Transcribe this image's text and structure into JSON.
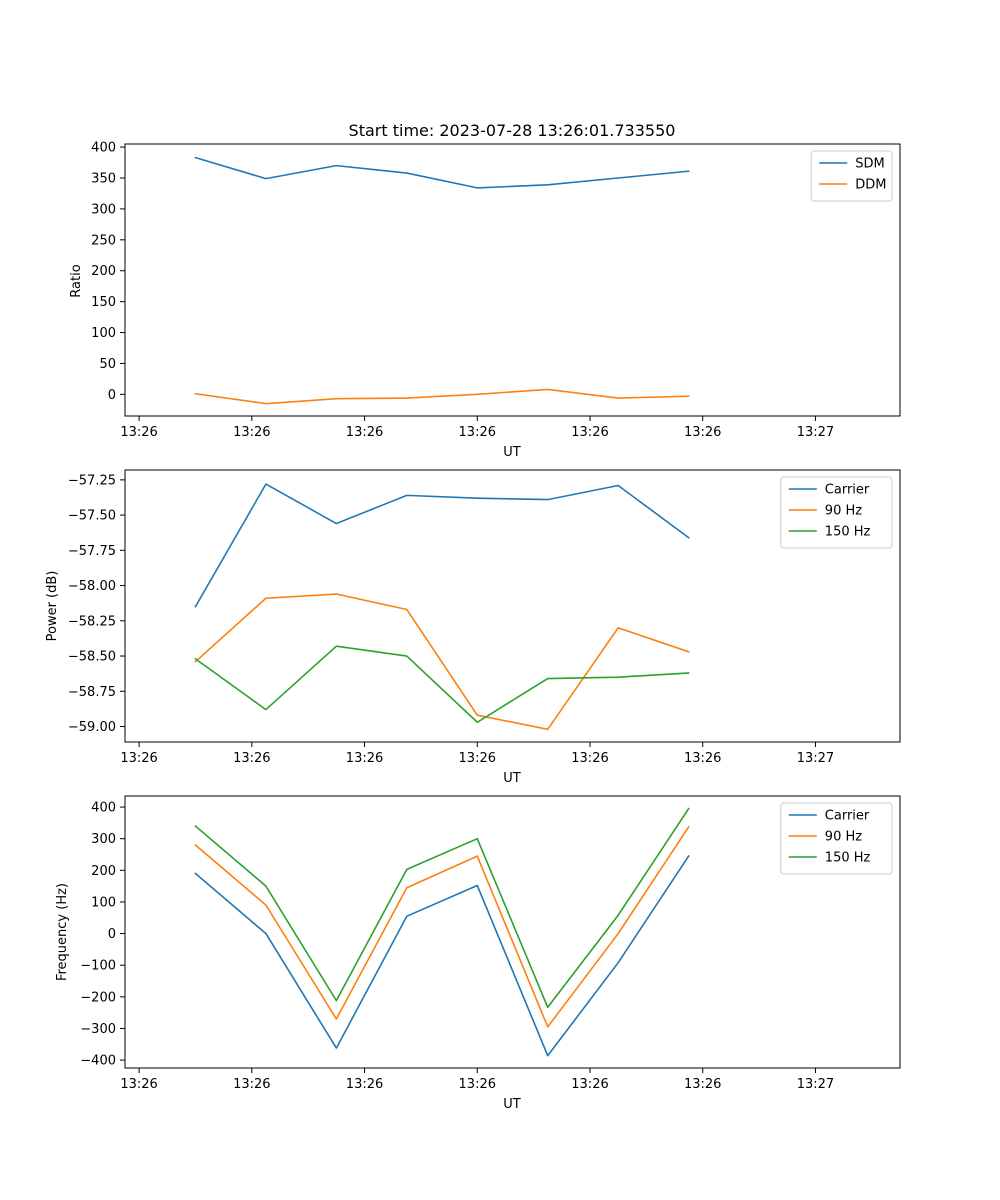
{
  "chart_data": [
    {
      "type": "line",
      "title": "Start time: 2023-07-28 13:26:01.733550",
      "xlabel": "UT",
      "ylabel": "Ratio",
      "xlim": [
        0,
        11
      ],
      "ylim": [
        -35,
        405
      ],
      "x": [
        1,
        2,
        3,
        4,
        5,
        6,
        7,
        8
      ],
      "xticks": [
        0.2,
        1.8,
        3.4,
        5.0,
        6.6,
        8.2,
        9.8
      ],
      "xtick_labels": [
        "13:26",
        "13:26",
        "13:26",
        "13:26",
        "13:26",
        "13:26",
        "13:27"
      ],
      "yticks": [
        0,
        50,
        100,
        150,
        200,
        250,
        300,
        350,
        400
      ],
      "legend_position": "upper-right",
      "series": [
        {
          "name": "SDM",
          "color": "#1f77b4",
          "values": [
            383,
            349,
            370,
            358,
            334,
            339,
            350,
            361
          ]
        },
        {
          "name": "DDM",
          "color": "#ff7f0e",
          "values": [
            1,
            -15,
            -7,
            -6,
            0,
            8,
            -6,
            -3
          ]
        }
      ]
    },
    {
      "type": "line",
      "title": "",
      "xlabel": "UT",
      "ylabel": "Power (dB)",
      "xlim": [
        0,
        11
      ],
      "ylim": [
        -59.11,
        -57.18
      ],
      "x": [
        1,
        2,
        3,
        4,
        5,
        6,
        7,
        8
      ],
      "xticks": [
        0.2,
        1.8,
        3.4,
        5.0,
        6.6,
        8.2,
        9.8
      ],
      "xtick_labels": [
        "13:26",
        "13:26",
        "13:26",
        "13:26",
        "13:26",
        "13:26",
        "13:27"
      ],
      "yticks": [
        -59.0,
        -58.75,
        -58.5,
        -58.25,
        -58.0,
        -57.75,
        -57.5,
        -57.25
      ],
      "ytick_labels": [
        "−59.00",
        "−58.75",
        "−58.50",
        "−58.25",
        "−58.00",
        "−57.75",
        "−57.50",
        "−57.25"
      ],
      "legend_position": "upper-right",
      "series": [
        {
          "name": "Carrier",
          "color": "#1f77b4",
          "values": [
            -58.15,
            -57.28,
            -57.56,
            -57.36,
            -57.38,
            -57.39,
            -57.29,
            -57.66
          ]
        },
        {
          "name": "90 Hz",
          "color": "#ff7f0e",
          "values": [
            -58.54,
            -58.09,
            -58.06,
            -58.17,
            -58.92,
            -59.02,
            -58.3,
            -58.47
          ]
        },
        {
          "name": "150 Hz",
          "color": "#2ca02c",
          "values": [
            -58.52,
            -58.88,
            -58.43,
            -58.5,
            -58.97,
            -58.66,
            -58.65,
            -58.62
          ]
        }
      ]
    },
    {
      "type": "line",
      "title": "",
      "xlabel": "UT",
      "ylabel": "Frequency (Hz)",
      "xlim": [
        0,
        11
      ],
      "ylim": [
        -425,
        435
      ],
      "x": [
        1,
        2,
        3,
        4,
        5,
        6,
        7,
        8
      ],
      "xticks": [
        0.2,
        1.8,
        3.4,
        5.0,
        6.6,
        8.2,
        9.8
      ],
      "xtick_labels": [
        "13:26",
        "13:26",
        "13:26",
        "13:26",
        "13:26",
        "13:26",
        "13:27"
      ],
      "yticks": [
        -400,
        -300,
        -200,
        -100,
        0,
        100,
        200,
        300,
        400
      ],
      "ytick_labels": [
        "−400",
        "−300",
        "−200",
        "−100",
        "0",
        "100",
        "200",
        "300",
        "400"
      ],
      "legend_position": "upper-right",
      "series": [
        {
          "name": "Carrier",
          "color": "#1f77b4",
          "values": [
            190,
            0,
            -362,
            55,
            152,
            -386,
            -92,
            245
          ]
        },
        {
          "name": "90 Hz",
          "color": "#ff7f0e",
          "values": [
            280,
            90,
            -270,
            145,
            245,
            -295,
            0,
            337
          ]
        },
        {
          "name": "150 Hz",
          "color": "#2ca02c",
          "values": [
            340,
            150,
            -212,
            203,
            300,
            -233,
            58,
            395
          ]
        }
      ]
    }
  ]
}
